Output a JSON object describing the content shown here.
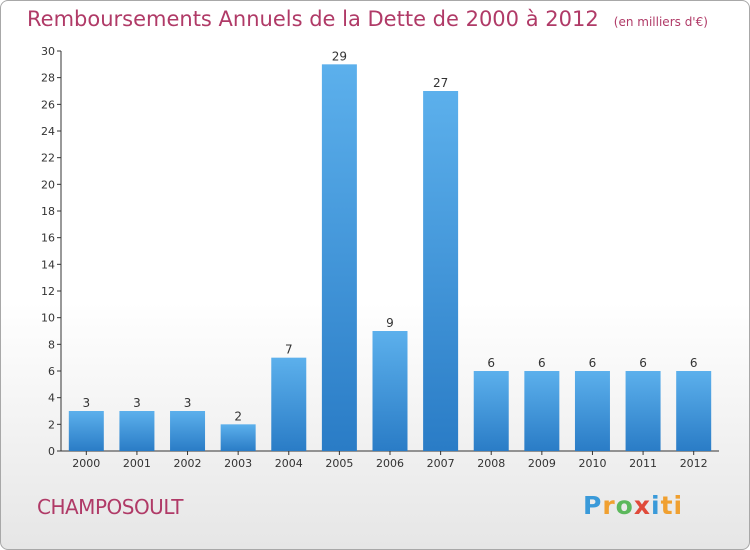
{
  "title": "Remboursements Annuels de la Dette de 2000 à 2012",
  "subtitle": "(en milliers d'€)",
  "commune": "CHAMPOSOULT",
  "brand": "Proxiti",
  "colors": {
    "bar": "#3a8fd6",
    "title": "#b03a67"
  },
  "chart_data": {
    "type": "bar",
    "title": "Remboursements Annuels de la Dette de 2000 à 2012",
    "subtitle": "(en milliers d'€)",
    "categories": [
      "2000",
      "2001",
      "2002",
      "2003",
      "2004",
      "2005",
      "2006",
      "2007",
      "2008",
      "2009",
      "2010",
      "2011",
      "2012"
    ],
    "values": [
      3,
      3,
      3,
      2,
      7,
      29,
      9,
      27,
      6,
      6,
      6,
      6,
      6
    ],
    "ylim": [
      0,
      30
    ],
    "yticks": [
      0,
      2,
      4,
      6,
      8,
      10,
      12,
      14,
      16,
      18,
      20,
      22,
      24,
      26,
      28,
      30
    ],
    "xlabel": "",
    "ylabel": "",
    "grid": false,
    "legend": "none"
  }
}
